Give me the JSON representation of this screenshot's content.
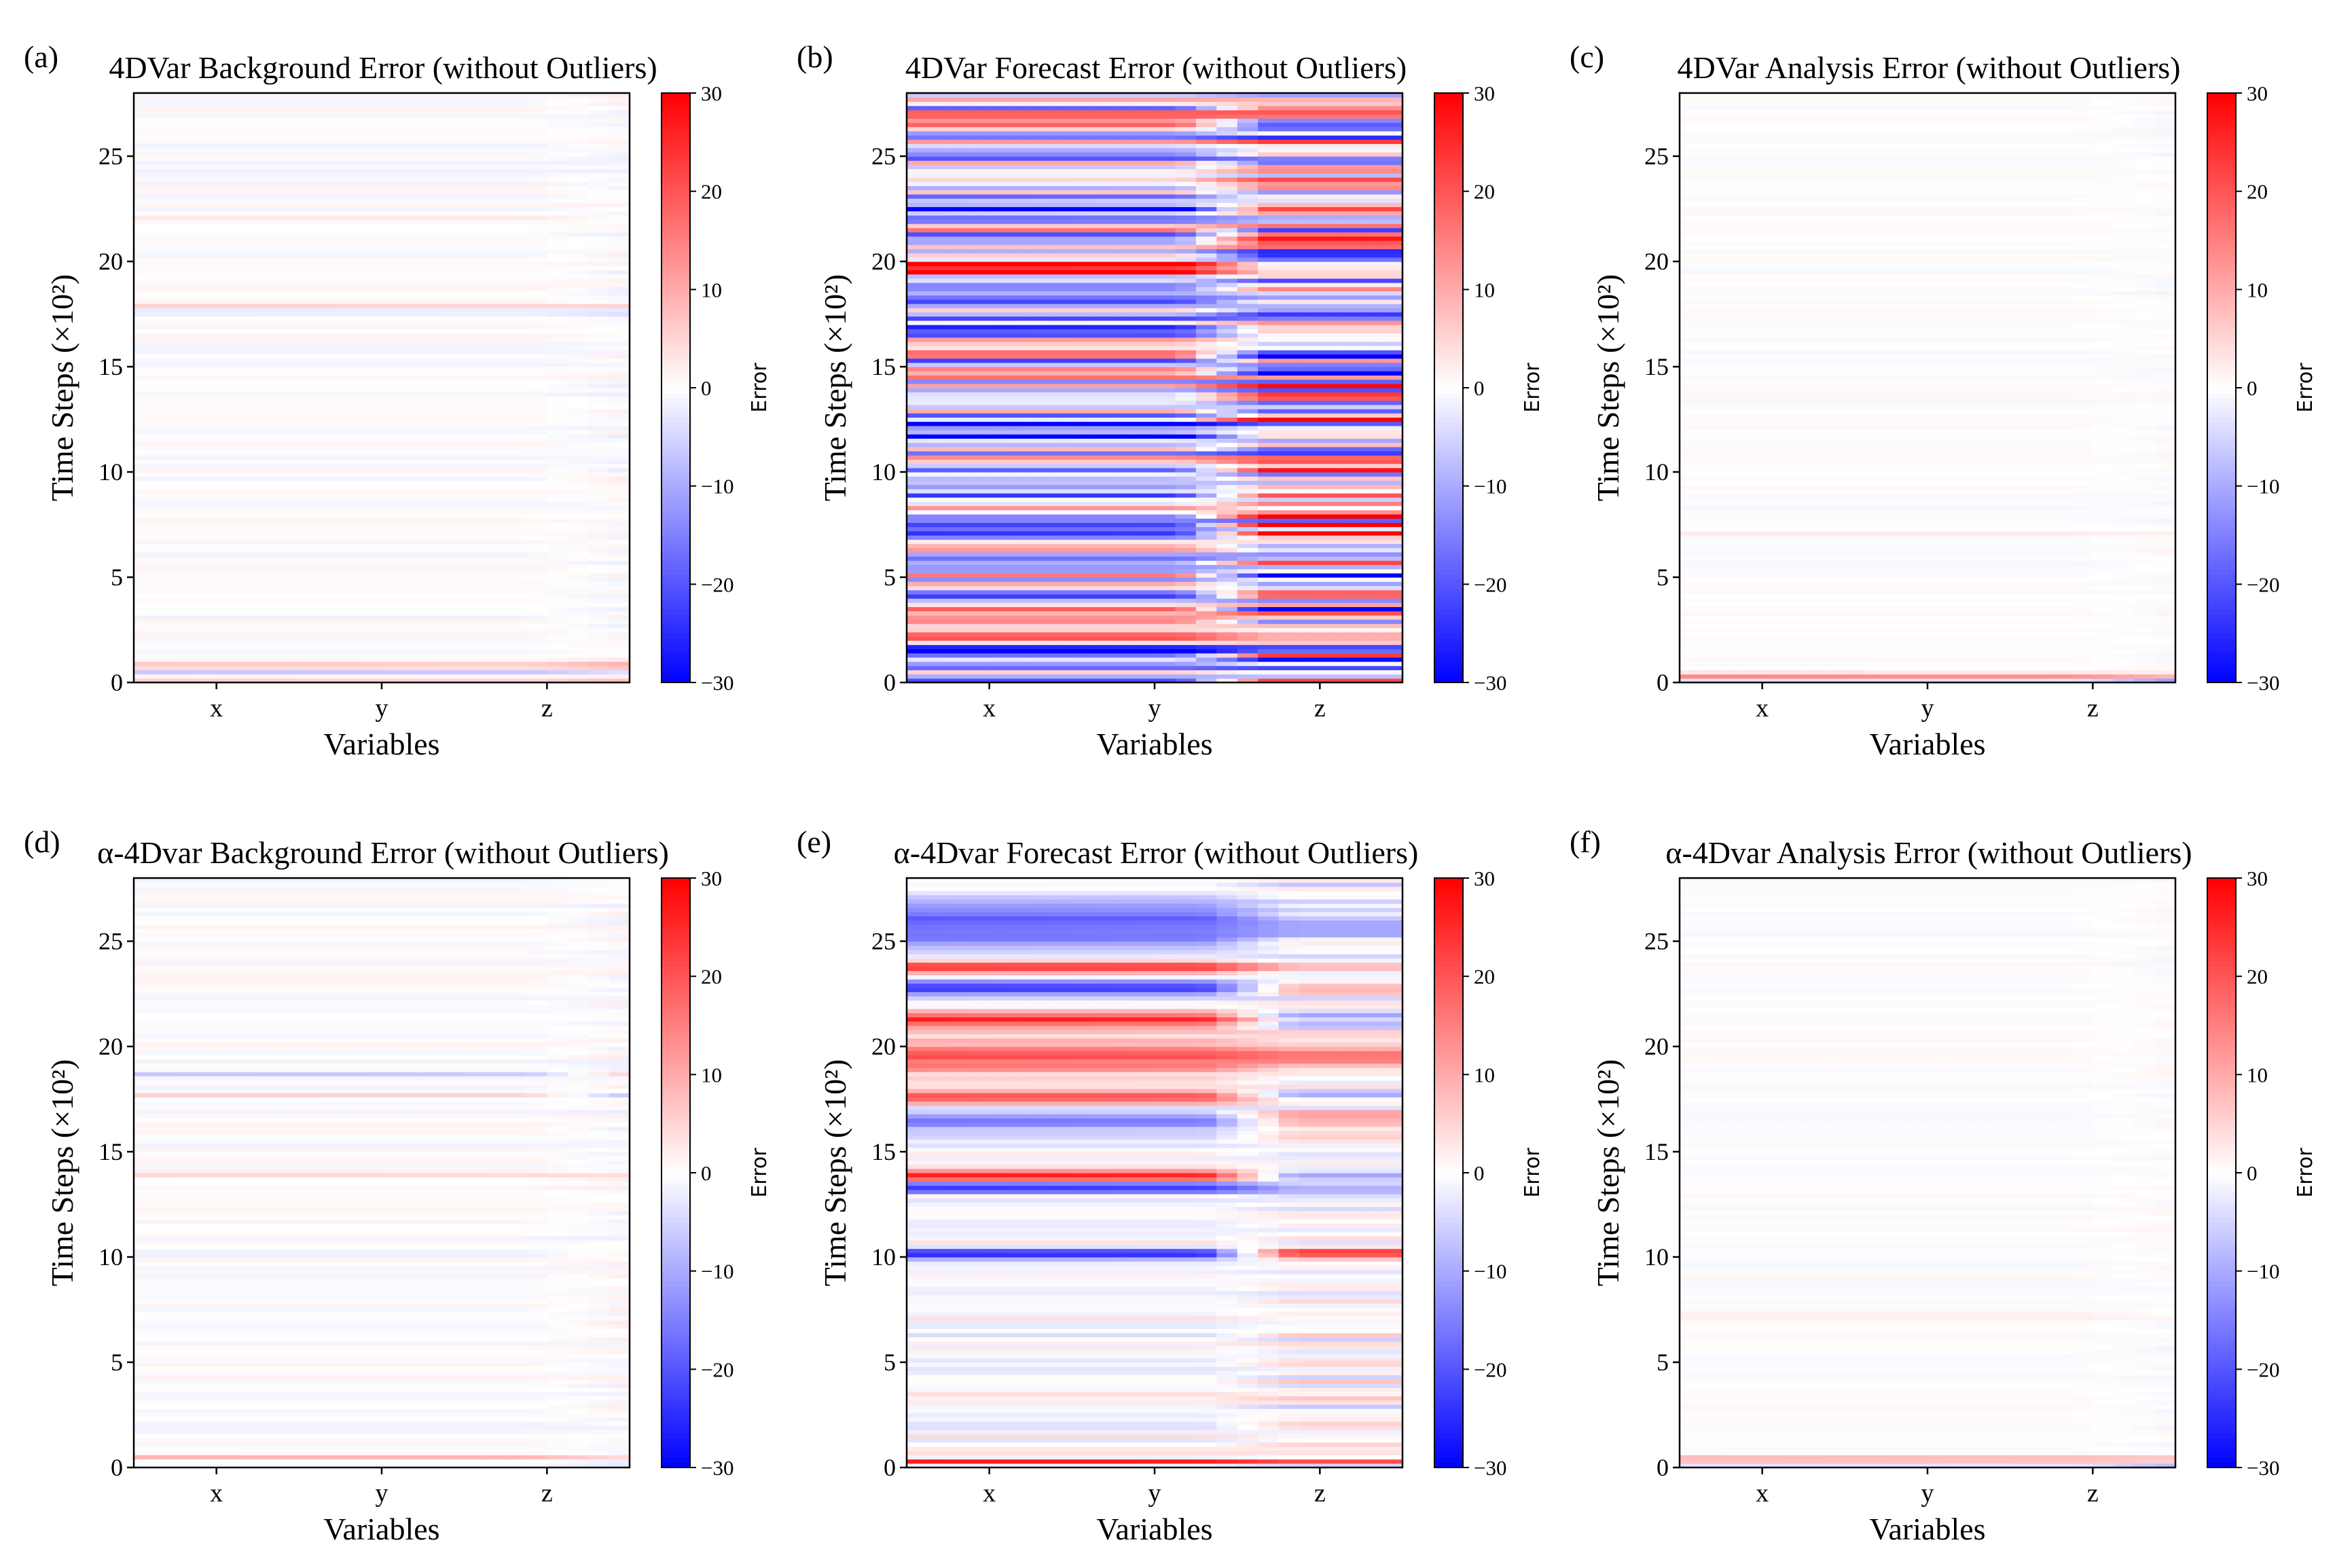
{
  "figure": {
    "colormap": {
      "low": "#0000ff",
      "mid": "#ffffff",
      "high": "#ff0000"
    },
    "colorbar": {
      "label": "Error",
      "vmin": -30,
      "vmax": 30,
      "ticks": [
        "30",
        "20",
        "10",
        "0",
        "−10",
        "−20",
        "−30"
      ]
    }
  },
  "chart_data": [
    {
      "id": "a",
      "panel_label": "(a)",
      "type": "heatmap",
      "title": "4DVar Background Error (without Outliers)",
      "xlabel": "Variables",
      "ylabel": "Time Steps (×10²)",
      "x_categories": [
        "x",
        "y",
        "z"
      ],
      "y_ticks": [
        "0",
        "5",
        "10",
        "15",
        "20",
        "25"
      ],
      "ylim": [
        0,
        28
      ],
      "colorbar_label": "Error",
      "vmin": -30,
      "vmax": 30,
      "pattern": {
        "seed": 11,
        "band_amp": 1.5,
        "diverge_amp": 0.6,
        "mix_at": 0.8,
        "events": [
          {
            "t": 0.15,
            "w": 0.15,
            "a": [
              6,
              5,
              8
            ]
          },
          {
            "t": 0.45,
            "w": 0.12,
            "a": [
              -6,
              -7,
              -5
            ]
          },
          {
            "t": 0.75,
            "w": 0.12,
            "a": [
              5,
              4,
              6
            ]
          },
          {
            "t": 0.95,
            "w": 0.15,
            "a": [
              6,
              5,
              8
            ]
          },
          {
            "t": 17.6,
            "w": 0.12,
            "a": [
              -5,
              -4,
              -6
            ]
          },
          {
            "t": 17.9,
            "w": 0.12,
            "a": [
              5,
              4,
              6
            ]
          },
          {
            "t": 22.0,
            "w": 0.12,
            "a": [
              3,
              3,
              3
            ]
          }
        ]
      }
    },
    {
      "id": "b",
      "panel_label": "(b)",
      "type": "heatmap",
      "title": "4DVar Forecast Error (without Outliers)",
      "xlabel": "Variables",
      "ylabel": "Time Steps (×10²)",
      "x_categories": [
        "x",
        "y",
        "z"
      ],
      "y_ticks": [
        "0",
        "5",
        "10",
        "15",
        "20",
        "25"
      ],
      "ylim": [
        0,
        28
      ],
      "colorbar_label": "Error",
      "vmin": -30,
      "vmax": 30,
      "pattern": {
        "seed": 23,
        "band_amp": 20,
        "diverge_amp": 18,
        "mix_at": 0.55,
        "events": [
          {
            "t": 1.5,
            "w": 0.3,
            "a": [
              -26,
              -24,
              8
            ]
          },
          {
            "t": 7.0,
            "w": 0.3,
            "a": [
              -28,
              -26,
              10
            ]
          },
          {
            "t": 12.0,
            "w": 0.8,
            "a": [
              -24,
              -22,
              8
            ]
          },
          {
            "t": 16.9,
            "w": 0.3,
            "a": [
              -28,
              -26,
              6
            ]
          },
          {
            "t": 19.8,
            "w": 0.4,
            "a": [
              28,
              27,
              10
            ]
          },
          {
            "t": 22.5,
            "w": 0.8,
            "a": [
              -20,
              -18,
              6
            ]
          }
        ]
      }
    },
    {
      "id": "c",
      "panel_label": "(c)",
      "type": "heatmap",
      "title": "4DVar Analysis Error (without Outliers)",
      "xlabel": "Variables",
      "ylabel": "Time Steps (×10²)",
      "x_categories": [
        "x",
        "y",
        "z"
      ],
      "y_ticks": [
        "0",
        "5",
        "10",
        "15",
        "20",
        "25"
      ],
      "ylim": [
        0,
        28
      ],
      "colorbar_label": "Error",
      "vmin": -30,
      "vmax": 30,
      "pattern": {
        "seed": 37,
        "band_amp": 0.9,
        "diverge_amp": 0.3,
        "mix_at": 0.8,
        "events": [
          {
            "t": 0.1,
            "w": 0.1,
            "a": [
              -4,
              -3,
              -10
            ]
          },
          {
            "t": 0.35,
            "w": 0.12,
            "a": [
              16,
              14,
              10
            ]
          },
          {
            "t": 7.1,
            "w": 0.12,
            "a": [
              2,
              2,
              2
            ]
          }
        ]
      }
    },
    {
      "id": "d",
      "panel_label": "(d)",
      "type": "heatmap",
      "title": "α-4Dvar Background Error (without Outliers)",
      "xlabel": "Variables",
      "ylabel": "Time Steps (×10²)",
      "x_categories": [
        "x",
        "y",
        "z"
      ],
      "y_ticks": [
        "0",
        "5",
        "10",
        "15",
        "20",
        "25"
      ],
      "ylim": [
        0,
        28
      ],
      "colorbar_label": "Error",
      "vmin": -30,
      "vmax": 30,
      "pattern": {
        "seed": 41,
        "band_amp": 1.6,
        "diverge_amp": 0.6,
        "mix_at": 0.8,
        "events": [
          {
            "t": 0.2,
            "w": 0.12,
            "a": [
              -4,
              -4,
              -6
            ]
          },
          {
            "t": 0.45,
            "w": 0.12,
            "a": [
              9,
              8,
              7
            ]
          },
          {
            "t": 17.7,
            "w": 0.12,
            "a": [
              5,
              4,
              -5
            ]
          },
          {
            "t": 18.7,
            "w": 0.12,
            "a": [
              -5,
              -4,
              4
            ]
          },
          {
            "t": 13.9,
            "w": 0.12,
            "a": [
              4,
              3,
              3
            ]
          }
        ]
      }
    },
    {
      "id": "e",
      "panel_label": "(e)",
      "type": "heatmap",
      "title": "α-4Dvar Forecast Error (without Outliers)",
      "xlabel": "Variables",
      "ylabel": "Time Steps (×10²)",
      "x_categories": [
        "x",
        "y",
        "z"
      ],
      "y_ticks": [
        "0",
        "5",
        "10",
        "15",
        "20",
        "25"
      ],
      "ylim": [
        0,
        28
      ],
      "colorbar_label": "Error",
      "vmin": -30,
      "vmax": 30,
      "pattern": {
        "seed": 53,
        "band_amp": 4,
        "diverge_amp": 3,
        "mix_at": 0.6,
        "events": [
          {
            "t": 0.3,
            "w": 0.12,
            "a": [
              24,
              22,
              18
            ]
          },
          {
            "t": 10.2,
            "w": 0.25,
            "a": [
              -26,
              -24,
              20
            ]
          },
          {
            "t": 13.3,
            "w": 0.25,
            "a": [
              -24,
              -22,
              -6
            ]
          },
          {
            "t": 13.9,
            "w": 0.25,
            "a": [
              28,
              26,
              -10
            ]
          },
          {
            "t": 16.5,
            "w": 0.5,
            "a": [
              -16,
              -14,
              10
            ]
          },
          {
            "t": 17.6,
            "w": 0.3,
            "a": [
              22,
              20,
              -8
            ]
          },
          {
            "t": 19.5,
            "w": 0.8,
            "a": [
              20,
              18,
              10
            ]
          },
          {
            "t": 21.3,
            "w": 0.4,
            "a": [
              24,
              22,
              -8
            ]
          },
          {
            "t": 22.8,
            "w": 0.4,
            "a": [
              -22,
              -20,
              8
            ]
          },
          {
            "t": 23.8,
            "w": 0.25,
            "a": [
              28,
              26,
              12
            ]
          },
          {
            "t": 25.8,
            "w": 1.2,
            "a": [
              -18,
              -16,
              -6
            ]
          }
        ]
      }
    },
    {
      "id": "f",
      "panel_label": "(f)",
      "type": "heatmap",
      "title": "α-4Dvar Analysis Error (without Outliers)",
      "xlabel": "Variables",
      "ylabel": "Time Steps (×10²)",
      "x_categories": [
        "x",
        "y",
        "z"
      ],
      "y_ticks": [
        "0",
        "5",
        "10",
        "15",
        "20",
        "25"
      ],
      "ylim": [
        0,
        28
      ],
      "colorbar_label": "Error",
      "vmin": -30,
      "vmax": 30,
      "pattern": {
        "seed": 67,
        "band_amp": 0.9,
        "diverge_amp": 0.3,
        "mix_at": 0.8,
        "events": [
          {
            "t": 0.15,
            "w": 0.1,
            "a": [
              -5,
              -4,
              -10
            ]
          },
          {
            "t": 0.4,
            "w": 0.12,
            "a": [
              16,
              14,
              12
            ]
          },
          {
            "t": 7.2,
            "w": 0.12,
            "a": [
              2,
              2,
              2
            ]
          }
        ]
      }
    }
  ]
}
